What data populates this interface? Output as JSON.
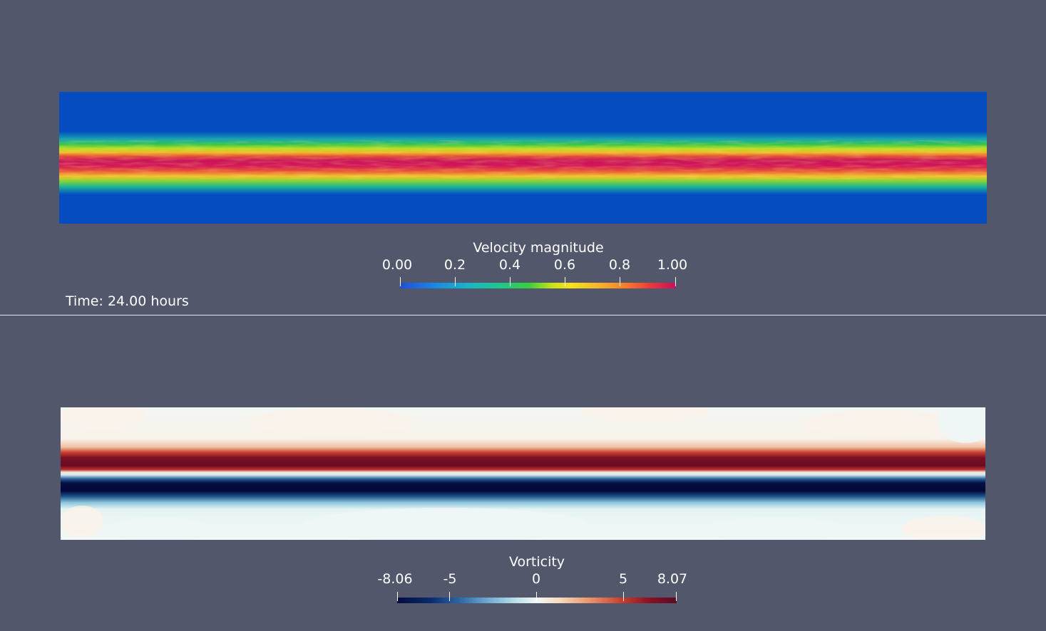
{
  "top_view": {
    "time_label": "Time: 24.00 hours",
    "legend": {
      "title": "Velocity magnitude",
      "ticks": [
        "0.00",
        "0.2",
        "0.4",
        "0.6",
        "0.8",
        "1.00"
      ],
      "range": [
        0.0,
        1.0
      ],
      "colormap": [
        "#1d4fd8",
        "#19b6c3",
        "#39d03a",
        "#f6e21c",
        "#f57c2a",
        "#c8105a"
      ]
    },
    "field_colors": {
      "background": "#054cc0",
      "core": "#d3155a",
      "edge": "#f5d12a"
    }
  },
  "bottom_view": {
    "legend": {
      "title": "Vorticity",
      "ticks": [
        "-8.06",
        "-5",
        "0",
        "5",
        "8.07"
      ],
      "range": [
        -8.06,
        8.07
      ],
      "colormap": [
        "#050a3c",
        "#2a64a4",
        "#f4f8f6",
        "#ec9a70",
        "#5b0a26"
      ]
    },
    "field_colors": {
      "background": "#f2f6f4",
      "positive_band": "#6b0c22",
      "negative_band": "#02073a"
    }
  },
  "colors": {
    "viewport_background": "#52576b",
    "text": "#ffffff"
  }
}
